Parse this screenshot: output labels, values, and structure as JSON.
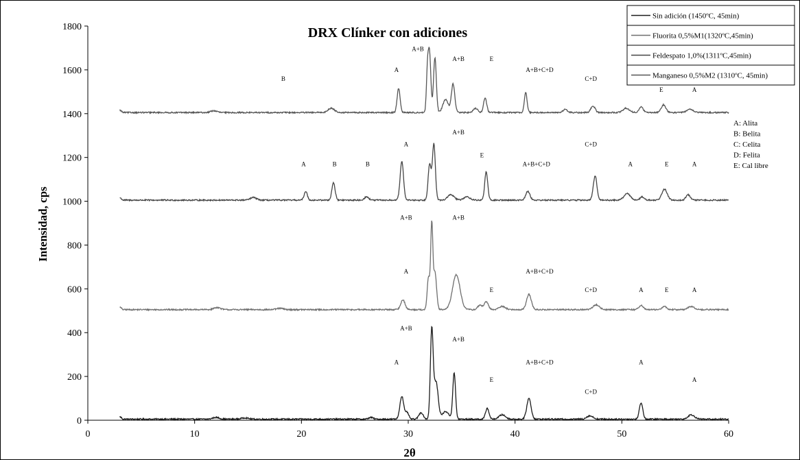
{
  "chart_data": {
    "type": "line",
    "title": "DRX Clínker con adiciones",
    "xlabel": "2θ",
    "ylabel": "Intensidad, cps",
    "xlim": [
      0,
      60
    ],
    "ylim": [
      0,
      1800
    ],
    "xticks": [
      0,
      10,
      20,
      30,
      40,
      50,
      60
    ],
    "yticks": [
      0,
      200,
      400,
      600,
      800,
      1000,
      1200,
      1400,
      1600,
      1800
    ],
    "grid": false,
    "legend_position": "top-right",
    "series": [
      {
        "name": "Sin adición (1450ºC, 45min)",
        "color": "#1a1a1a",
        "baseline": 5,
        "noise": 3,
        "peaks": [
          [
            12.0,
            8,
            0.3
          ],
          [
            14.7,
            6,
            0.3
          ],
          [
            26.5,
            8,
            0.2
          ],
          [
            29.4,
            105,
            0.18
          ],
          [
            29.9,
            30,
            0.15
          ],
          [
            31.2,
            30,
            0.2
          ],
          [
            32.2,
            400,
            0.13
          ],
          [
            32.6,
            170,
            0.2
          ],
          [
            33.5,
            35,
            0.3
          ],
          [
            34.3,
            210,
            0.13
          ],
          [
            37.4,
            50,
            0.16
          ],
          [
            38.8,
            20,
            0.3
          ],
          [
            41.3,
            95,
            0.2
          ],
          [
            47.0,
            15,
            0.3
          ],
          [
            51.8,
            75,
            0.16
          ],
          [
            56.5,
            20,
            0.3
          ]
        ]
      },
      {
        "name": "Fluorita 0,5%M1(1320ºC,45min)",
        "color": "#6e6e6e",
        "baseline": 505,
        "noise": 3,
        "peaks": [
          [
            12.1,
            10,
            0.3
          ],
          [
            18.0,
            6,
            0.3
          ],
          [
            29.5,
            45,
            0.2
          ],
          [
            31.9,
            150,
            0.12
          ],
          [
            32.2,
            380,
            0.1
          ],
          [
            32.5,
            170,
            0.15
          ],
          [
            34.5,
            160,
            0.35
          ],
          [
            36.7,
            20,
            0.2
          ],
          [
            37.3,
            35,
            0.2
          ],
          [
            38.8,
            15,
            0.3
          ],
          [
            41.3,
            70,
            0.22
          ],
          [
            47.6,
            22,
            0.3
          ],
          [
            51.8,
            20,
            0.2
          ],
          [
            54.0,
            15,
            0.2
          ],
          [
            56.5,
            14,
            0.3
          ]
        ]
      },
      {
        "name": "Feldespato 1,0%(1311ºC,45min)",
        "color": "#444444",
        "baseline": 1005,
        "noise": 3,
        "peaks": [
          [
            15.5,
            12,
            0.3
          ],
          [
            20.4,
            40,
            0.15
          ],
          [
            23.0,
            80,
            0.15
          ],
          [
            26.1,
            15,
            0.2
          ],
          [
            29.4,
            175,
            0.16
          ],
          [
            32.0,
            165,
            0.14
          ],
          [
            32.4,
            255,
            0.14
          ],
          [
            34.0,
            25,
            0.3
          ],
          [
            35.5,
            15,
            0.3
          ],
          [
            37.3,
            130,
            0.14
          ],
          [
            41.2,
            40,
            0.2
          ],
          [
            47.5,
            110,
            0.17
          ],
          [
            50.5,
            30,
            0.3
          ],
          [
            51.9,
            15,
            0.2
          ],
          [
            54.0,
            50,
            0.25
          ],
          [
            56.2,
            25,
            0.2
          ]
        ]
      },
      {
        "name": "Manganeso 0,5%M2 (1310ºC, 45min)",
        "color": "#555555",
        "baseline": 1405,
        "noise": 3,
        "peaks": [
          [
            11.8,
            8,
            0.3
          ],
          [
            22.8,
            20,
            0.3
          ],
          [
            29.1,
            110,
            0.14
          ],
          [
            31.8,
            180,
            0.1
          ],
          [
            32.0,
            260,
            0.12
          ],
          [
            32.5,
            250,
            0.13
          ],
          [
            33.5,
            60,
            0.25
          ],
          [
            34.2,
            130,
            0.16
          ],
          [
            36.3,
            20,
            0.2
          ],
          [
            37.2,
            65,
            0.15
          ],
          [
            41.0,
            90,
            0.13
          ],
          [
            44.7,
            15,
            0.2
          ],
          [
            47.3,
            30,
            0.2
          ],
          [
            50.4,
            20,
            0.3
          ],
          [
            51.8,
            25,
            0.2
          ],
          [
            53.9,
            35,
            0.22
          ],
          [
            56.4,
            15,
            0.3
          ]
        ]
      }
    ],
    "annotations": [
      {
        "text": "B",
        "x": 18.3,
        "y": 1550
      },
      {
        "text": "A",
        "x": 28.9,
        "y": 1590
      },
      {
        "text": "A+B",
        "x": 30.9,
        "y": 1685
      },
      {
        "text": "A+B",
        "x": 34.7,
        "y": 1640
      },
      {
        "text": "E",
        "x": 37.8,
        "y": 1640
      },
      {
        "text": "A+B+C+D",
        "x": 42.3,
        "y": 1590
      },
      {
        "text": "C+D",
        "x": 47.1,
        "y": 1550
      },
      {
        "text": "E",
        "x": 53.7,
        "y": 1500
      },
      {
        "text": "A",
        "x": 56.8,
        "y": 1500
      },
      {
        "text": "A+B",
        "x": 34.7,
        "y": 1305
      },
      {
        "text": "A",
        "x": 29.8,
        "y": 1250
      },
      {
        "text": "C+D",
        "x": 47.1,
        "y": 1250
      },
      {
        "text": "E",
        "x": 36.9,
        "y": 1200
      },
      {
        "text": "A",
        "x": 20.2,
        "y": 1160
      },
      {
        "text": "B",
        "x": 23.1,
        "y": 1160
      },
      {
        "text": "B",
        "x": 26.2,
        "y": 1160
      },
      {
        "text": "A+B+C+D",
        "x": 42.0,
        "y": 1160
      },
      {
        "text": "A",
        "x": 50.8,
        "y": 1160
      },
      {
        "text": "E",
        "x": 54.2,
        "y": 1160
      },
      {
        "text": "A",
        "x": 56.8,
        "y": 1160
      },
      {
        "text": "A+B",
        "x": 29.8,
        "y": 915
      },
      {
        "text": "A+B",
        "x": 34.7,
        "y": 915
      },
      {
        "text": "A",
        "x": 29.8,
        "y": 670
      },
      {
        "text": "A+B+C+D",
        "x": 42.3,
        "y": 670
      },
      {
        "text": "E",
        "x": 37.8,
        "y": 585
      },
      {
        "text": "C+D",
        "x": 47.1,
        "y": 585
      },
      {
        "text": "A",
        "x": 51.8,
        "y": 585
      },
      {
        "text": "E",
        "x": 54.2,
        "y": 585
      },
      {
        "text": "A",
        "x": 56.8,
        "y": 585
      },
      {
        "text": "A+B",
        "x": 29.8,
        "y": 410
      },
      {
        "text": "A+B",
        "x": 34.7,
        "y": 360
      },
      {
        "text": "A",
        "x": 28.9,
        "y": 255
      },
      {
        "text": "A+B+C+D",
        "x": 42.3,
        "y": 255
      },
      {
        "text": "A",
        "x": 51.8,
        "y": 255
      },
      {
        "text": "E",
        "x": 37.8,
        "y": 175
      },
      {
        "text": "A",
        "x": 56.8,
        "y": 175
      },
      {
        "text": "C+D",
        "x": 47.1,
        "y": 120
      }
    ],
    "key": [
      "A: Alita",
      "B: Belita",
      "C: Celita",
      "D: Felita",
      "E: Cal libre"
    ]
  }
}
